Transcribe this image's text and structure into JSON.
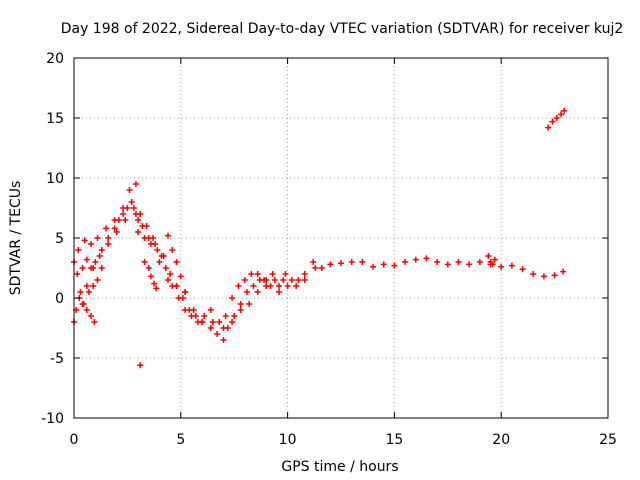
{
  "chart_data": {
    "type": "scatter",
    "title": "Day 198 of 2022, Sidereal Day-to-day VTEC variation (SDTVAR) for receiver kuj2",
    "xlabel": "GPS time / hours",
    "ylabel": "SDTVAR / TECUs",
    "xlim": [
      0,
      25
    ],
    "ylim": [
      -10,
      20
    ],
    "xticks": [
      0,
      5,
      10,
      15,
      20,
      25
    ],
    "yticks": [
      -10,
      -5,
      0,
      5,
      10,
      15,
      20
    ],
    "grid": true,
    "marker": "+",
    "colors": {
      "series": "#ff0000",
      "axis": "#000000",
      "grid": "#a0a0a0"
    },
    "series": [
      {
        "name": "sdtvar",
        "x": [
          0.0,
          0.15,
          0.3,
          0.45,
          0.6,
          0.8,
          1.0,
          1.3,
          1.6,
          1.9,
          2.1,
          2.3,
          2.5,
          2.7,
          2.9,
          3.0,
          3.2,
          3.5,
          3.8,
          4.1,
          4.3,
          4.6,
          4.9,
          5.2,
          5.5,
          5.8,
          6.1,
          6.4,
          6.7,
          7.0,
          7.2,
          7.5,
          7.8,
          8.1,
          8.4,
          8.7,
          9.0,
          9.3,
          9.6,
          9.9,
          10.2,
          10.5,
          10.8,
          11.2,
          11.6,
          12.0,
          12.5,
          13.0,
          13.5,
          14.0,
          14.5,
          15.0,
          15.5,
          16.0,
          16.5,
          17.0,
          17.5,
          18.0,
          18.5,
          19.0,
          19.5,
          20.0,
          20.5,
          21.0,
          21.5,
          22.0,
          22.5,
          22.9,
          0.2,
          0.5,
          0.8,
          1.1,
          1.5,
          1.9,
          2.3,
          2.6,
          2.9,
          3.1,
          3.4,
          3.7,
          3.9,
          4.2,
          4.5,
          4.8,
          5.1,
          5.4,
          5.7,
          6.0,
          6.4,
          6.8,
          7.1,
          7.4,
          7.7,
          8.0,
          8.3,
          8.6,
          8.9,
          9.2,
          9.6,
          10.0,
          10.4,
          10.8,
          11.3,
          0.4,
          0.6,
          0.9,
          1.2,
          1.6,
          2.0,
          2.4,
          2.8,
          3.0,
          3.3,
          3.6,
          4.0,
          4.4,
          4.8,
          5.2,
          5.6,
          6.0,
          6.5,
          7.0,
          7.4,
          7.8,
          8.2,
          8.6,
          9.0,
          9.4,
          9.8,
          0.0,
          0.1,
          0.25,
          0.4,
          0.6,
          0.8,
          0.95,
          0.7,
          0.9,
          1.1,
          1.3,
          3.3,
          3.5,
          3.6,
          3.75,
          3.85,
          4.4,
          4.6,
          4.8,
          5.0,
          5.2,
          19.4,
          19.5,
          19.6,
          19.7,
          22.2,
          22.4,
          22.6,
          22.8,
          22.95,
          3.1
        ],
        "y": [
          3.0,
          2.0,
          0.5,
          -0.5,
          1.0,
          2.5,
          3.0,
          4.0,
          5.0,
          5.8,
          6.5,
          7.0,
          7.5,
          8.0,
          7.0,
          6.5,
          6.0,
          5.0,
          4.5,
          3.5,
          2.5,
          1.0,
          0.0,
          -1.0,
          -1.5,
          -2.0,
          -1.5,
          -2.5,
          -3.0,
          -3.5,
          -2.5,
          -1.5,
          -0.5,
          0.5,
          1.0,
          1.5,
          1.5,
          2.0,
          1.0,
          2.0,
          1.5,
          1.5,
          2.0,
          3.0,
          2.5,
          2.8,
          2.9,
          3.0,
          3.0,
          2.6,
          2.8,
          2.7,
          3.0,
          3.2,
          3.3,
          3.0,
          2.8,
          3.0,
          2.8,
          3.0,
          2.8,
          2.6,
          2.7,
          2.4,
          2.0,
          1.8,
          1.9,
          2.2,
          4.0,
          4.8,
          4.5,
          5.0,
          5.8,
          6.5,
          7.5,
          9.0,
          9.5,
          7.0,
          6.0,
          5.0,
          4.0,
          3.5,
          2.0,
          1.0,
          0.0,
          -1.0,
          -1.5,
          -2.0,
          -1.0,
          -2.0,
          -1.5,
          0.0,
          1.0,
          1.5,
          2.0,
          2.0,
          1.5,
          1.0,
          0.5,
          1.0,
          1.0,
          1.5,
          2.5,
          2.5,
          3.2,
          2.5,
          3.5,
          4.5,
          5.5,
          6.5,
          7.5,
          5.5,
          5.0,
          4.5,
          3.0,
          1.5,
          1.0,
          0.5,
          -1.0,
          -2.0,
          -2.0,
          -2.5,
          -2.0,
          -1.0,
          -0.5,
          0.5,
          1.0,
          1.5,
          1.5,
          -2.0,
          -1.0,
          0.0,
          -0.5,
          -1.0,
          -1.5,
          -2.0,
          0.5,
          1.0,
          1.5,
          2.5,
          3.0,
          2.5,
          1.8,
          1.2,
          0.8,
          5.2,
          4.0,
          3.0,
          1.8,
          0.5,
          3.5,
          3.0,
          2.8,
          3.2,
          14.2,
          14.7,
          15.0,
          15.3,
          15.6,
          -5.6
        ]
      }
    ]
  }
}
